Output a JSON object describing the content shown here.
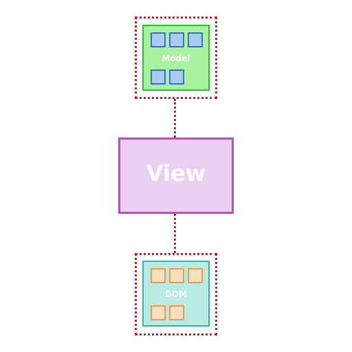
{
  "diagram": {
    "model": {
      "label": "Model",
      "fill": "#a9f2a0",
      "stroke": "#24c224",
      "cell_fill": "#a9cdf2",
      "cell_stroke": "#3a6fd8"
    },
    "view": {
      "label": "View",
      "fill": "#ebcff3",
      "stroke": "#b455b4"
    },
    "dom": {
      "label": "DOM",
      "fill": "#b9ebe3",
      "stroke": "#2cb5b5",
      "cell_fill": "#f8dfc0",
      "cell_stroke": "#ee9c4a"
    },
    "connector_color": "#e0141e"
  }
}
